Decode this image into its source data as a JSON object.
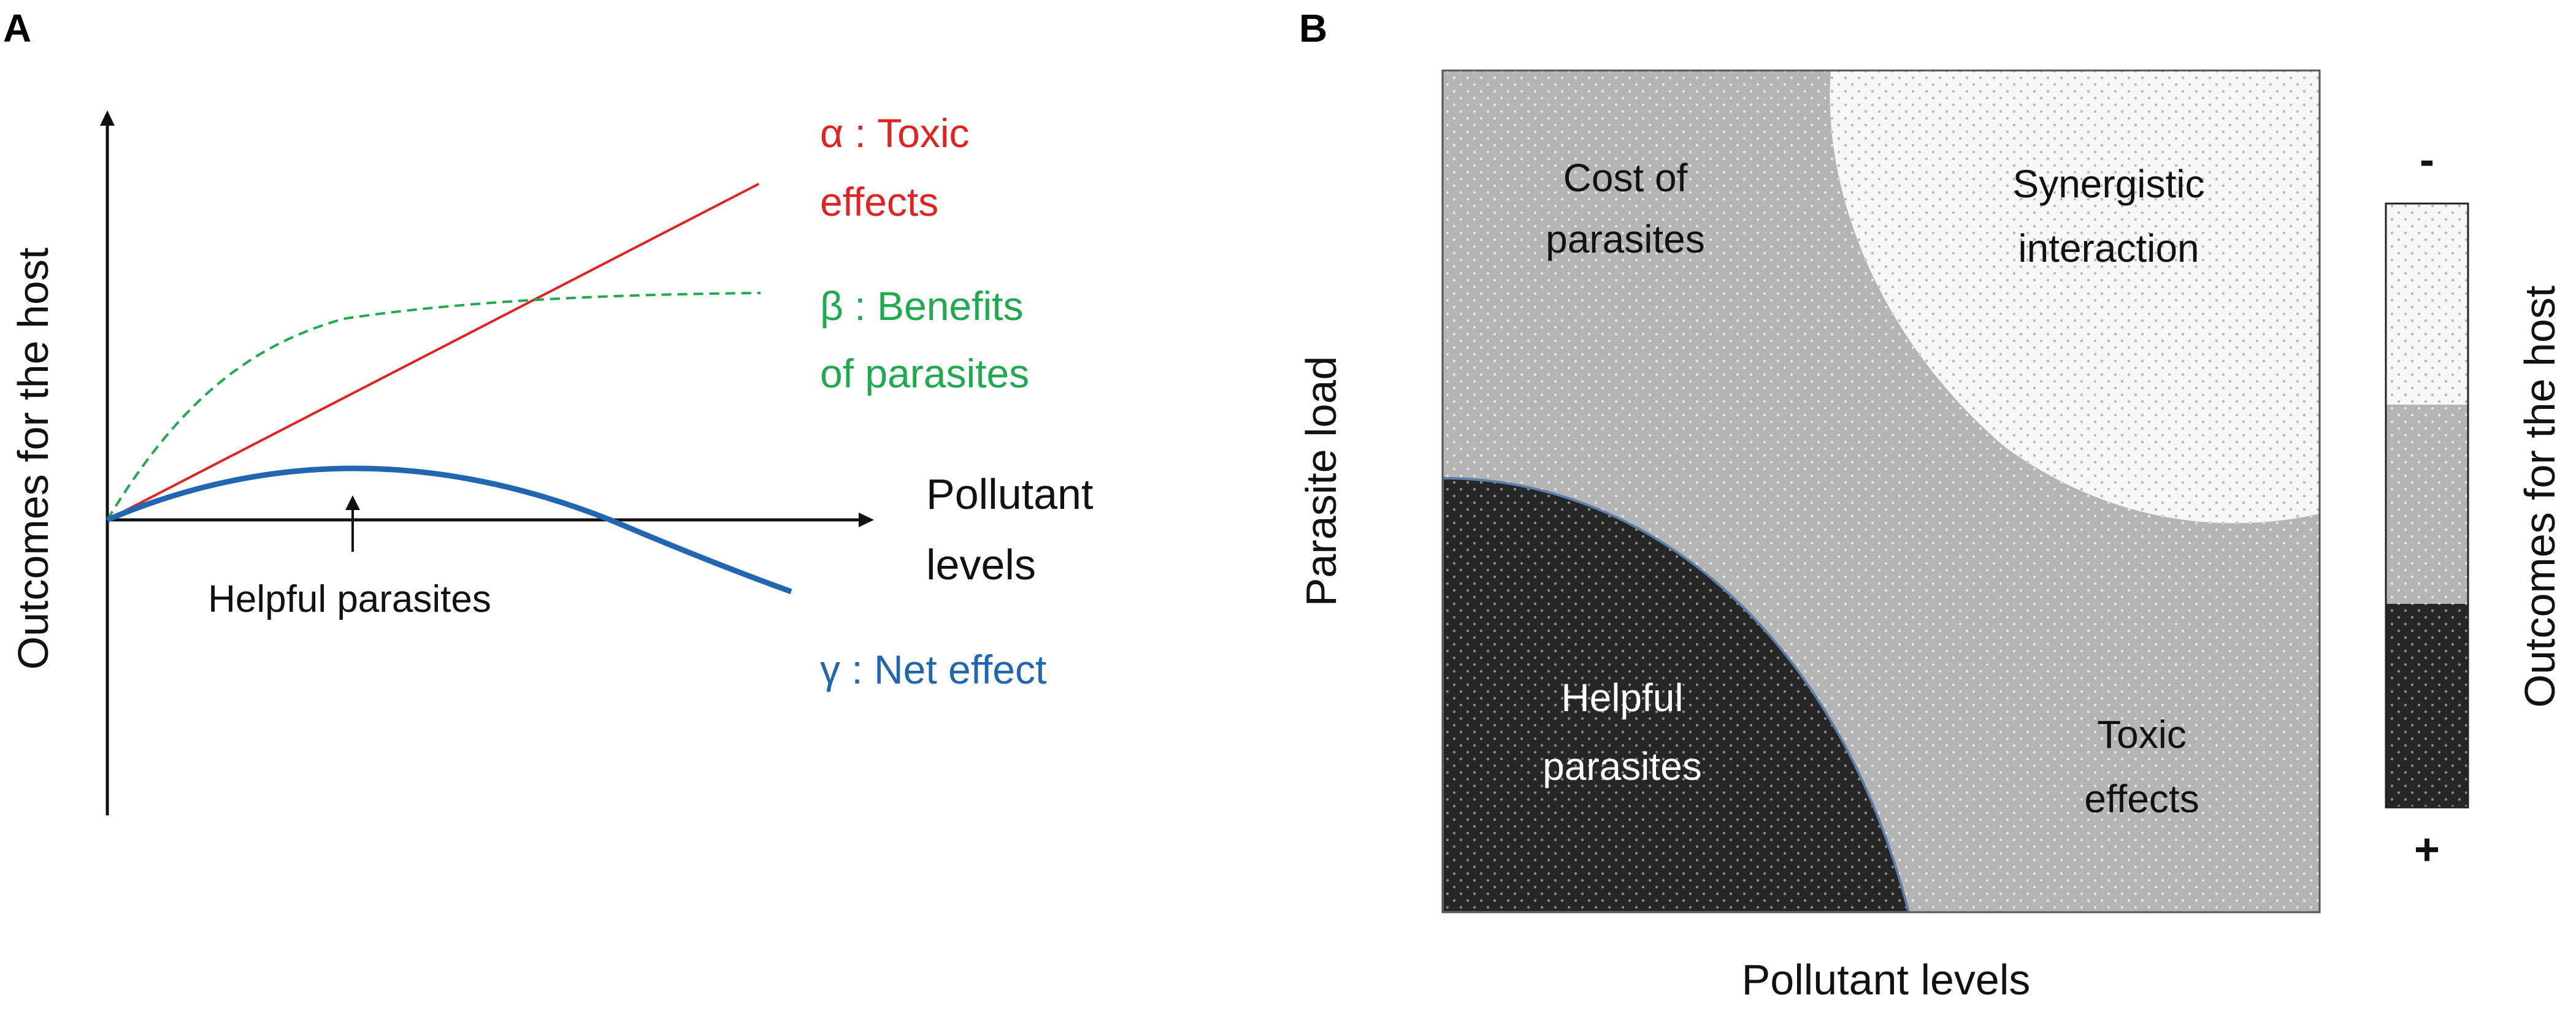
{
  "panel_a": {
    "letter": "A",
    "y_axis_label": "Outcomes for the host",
    "x_axis_label": [
      "Pollutant",
      "levels"
    ],
    "alpha_label": [
      "α : Toxic",
      "effects"
    ],
    "beta_label": [
      "β : Benefits",
      "of parasites"
    ],
    "gamma_label": "γ : Net effect",
    "helpful_label": "Helpful parasites",
    "colors": {
      "alpha": "#e02424",
      "beta": "#1faa4f",
      "gamma": "#2166b0",
      "axis": "#111111"
    }
  },
  "panel_b": {
    "letter": "B",
    "x_axis_label": "Pollutant levels",
    "y_axis_label": "Parasite load",
    "regions": {
      "cost": [
        "Cost of",
        "parasites"
      ],
      "synergy": [
        "Synergistic",
        "interaction"
      ],
      "helpful": [
        "Helpful",
        "parasites"
      ],
      "toxic": [
        "Toxic",
        "effects"
      ]
    },
    "colorbar": {
      "top_sign": "-",
      "bottom_sign": "+",
      "label": "Outcomes for the host"
    },
    "colors": {
      "light": "#f7f7f7",
      "mid": "#b4b4b4",
      "dark": "#262626"
    }
  }
}
